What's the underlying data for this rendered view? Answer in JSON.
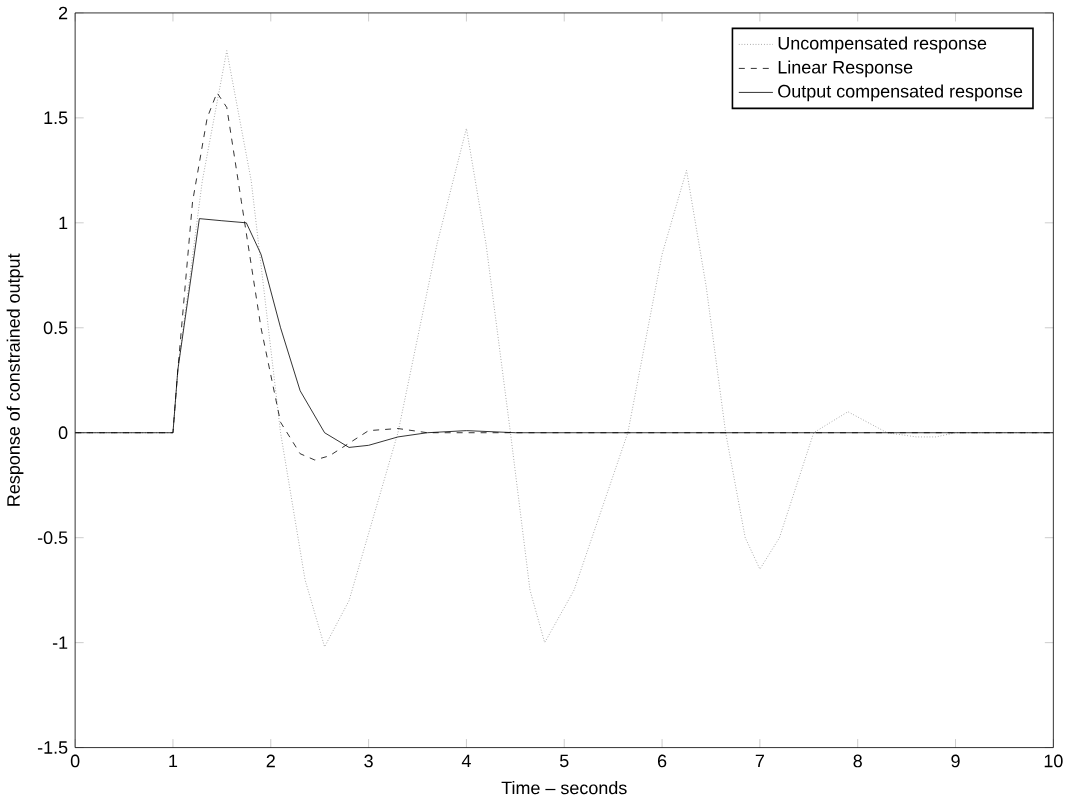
{
  "chart_data": {
    "type": "line",
    "xlabel": "Time – seconds",
    "ylabel": "Response of constrained output",
    "xlim": [
      0,
      10
    ],
    "ylim": [
      -1.5,
      2
    ],
    "xticks": [
      0,
      1,
      2,
      3,
      4,
      5,
      6,
      7,
      8,
      9,
      10
    ],
    "yticks": [
      -1.5,
      -1,
      -0.5,
      0,
      0.5,
      1,
      1.5,
      2
    ],
    "grid": false,
    "legend": "top right",
    "marker": "none",
    "series": [
      {
        "name": "Uncompensated response",
        "color": "#808080",
        "line_style": "dotted",
        "x": [
          0,
          1,
          1.05,
          1.3,
          1.55,
          1.8,
          2.1,
          2.35,
          2.55,
          2.8,
          3.3,
          3.7,
          4.0,
          4.2,
          4.45,
          4.65,
          4.8,
          5.1,
          5.65,
          6.0,
          6.25,
          6.45,
          6.65,
          6.85,
          7.0,
          7.2,
          7.55,
          7.9,
          8.3,
          8.6,
          8.8,
          9.0,
          10
        ],
        "values": [
          0,
          0,
          0.3,
          1.2,
          1.82,
          1.2,
          0,
          -0.7,
          -1.02,
          -0.8,
          0,
          0.9,
          1.45,
          0.9,
          0,
          -0.75,
          -1.0,
          -0.75,
          0,
          0.85,
          1.25,
          0.7,
          0,
          -0.5,
          -0.65,
          -0.5,
          0,
          0.1,
          0,
          -0.02,
          -0.02,
          0,
          0
        ]
      },
      {
        "name": "Linear Response",
        "color": "#000000",
        "line_style": "dashed",
        "x": [
          0,
          1,
          1.05,
          1.2,
          1.35,
          1.45,
          1.55,
          1.7,
          1.9,
          2.1,
          2.3,
          2.45,
          2.6,
          2.8,
          3.0,
          3.3,
          3.6,
          4,
          10
        ],
        "values": [
          0,
          0,
          0.3,
          1.1,
          1.5,
          1.62,
          1.55,
          1.1,
          0.5,
          0.05,
          -0.1,
          -0.13,
          -0.11,
          -0.05,
          0.01,
          0.02,
          0,
          0,
          0
        ]
      },
      {
        "name": "Output compensated response",
        "color": "#000000",
        "line_style": "solid",
        "x": [
          0,
          1,
          1.05,
          1.27,
          1.5,
          1.75,
          1.9,
          2.1,
          2.3,
          2.55,
          2.8,
          3.0,
          3.3,
          3.6,
          4.0,
          4.5,
          10
        ],
        "values": [
          0,
          0,
          0.3,
          1.02,
          1.01,
          1.0,
          0.85,
          0.5,
          0.2,
          0.0,
          -0.07,
          -0.06,
          -0.02,
          0.0,
          0.01,
          0,
          0
        ]
      }
    ]
  }
}
